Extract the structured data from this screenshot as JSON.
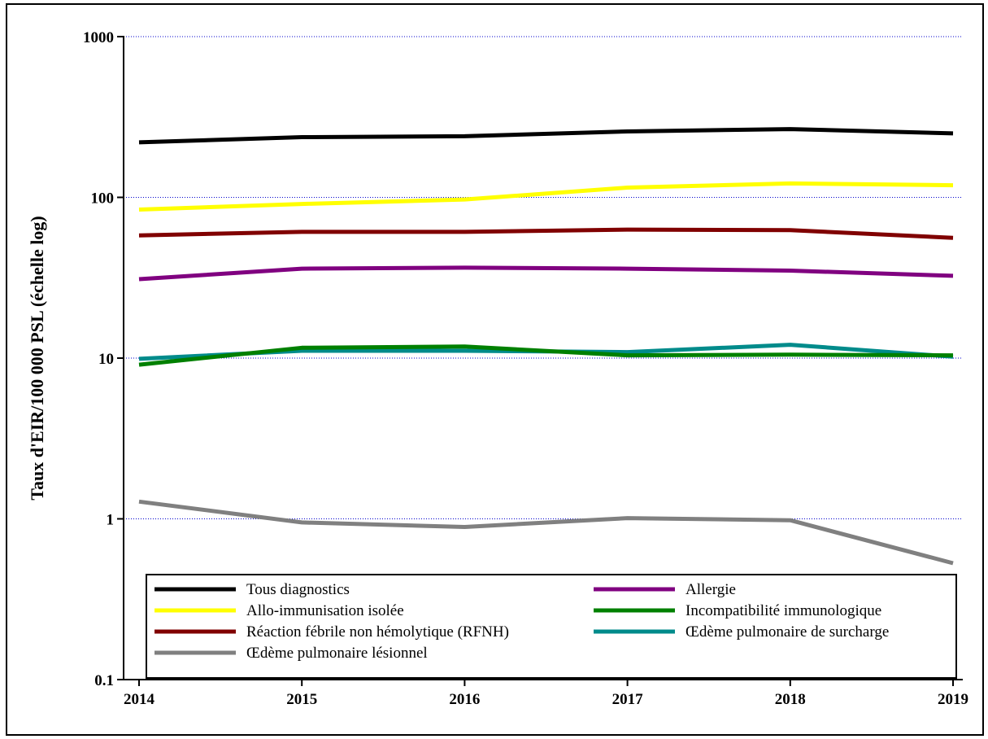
{
  "chart_data": {
    "type": "line",
    "title": "",
    "xlabel": "",
    "ylabel": "Taux d'EIR/100 000 PSL (échelle log)",
    "y_scale": "log",
    "ylim": [
      0.1,
      1000
    ],
    "y_ticks": [
      "0.1",
      "1",
      "10",
      "100",
      "1000"
    ],
    "x": [
      2014,
      2015,
      2016,
      2017,
      2018,
      2019
    ],
    "x_tick_labels": [
      "2014",
      "2015",
      "2016",
      "2017",
      "2018",
      "2019"
    ],
    "grid": "horizontal dotted blue at major ticks",
    "legend_position": "bottom, inside plot, two columns",
    "series": [
      {
        "name": "Tous diagnostics",
        "color": "#000000",
        "values": [
          220,
          237,
          240,
          257,
          266,
          250
        ]
      },
      {
        "name": "Allergie",
        "color": "#800080",
        "values": [
          31,
          36,
          36.5,
          36,
          35,
          32.5
        ]
      },
      {
        "name": "Allo-immunisation isolée",
        "color": "#ffff00",
        "values": [
          84,
          91,
          97,
          115,
          122,
          119
        ]
      },
      {
        "name": "Incompatibilité immunologique",
        "color": "#008000",
        "values": [
          9.1,
          11.6,
          11.8,
          10.4,
          10.5,
          10.4
        ]
      },
      {
        "name": "Réaction fébrile non hémolytique (RFNH)",
        "color": "#800000",
        "values": [
          58,
          61,
          61,
          63,
          62.5,
          56
        ]
      },
      {
        "name": "Œdème pulmonaire de surcharge",
        "color": "#008b8b",
        "values": [
          9.9,
          11.1,
          11.1,
          10.9,
          12.1,
          10.2
        ]
      },
      {
        "name": "Œdème pulmonaire lésionnel",
        "color": "#808080",
        "values": [
          1.28,
          0.95,
          0.89,
          1.01,
          0.98,
          0.53
        ]
      }
    ]
  }
}
